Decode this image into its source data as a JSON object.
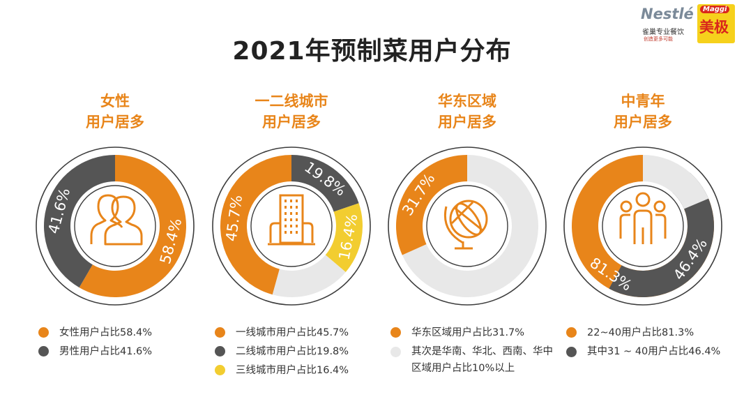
{
  "title": "2021年预制菜用户分布",
  "logos": {
    "nestle_word": "Nestlé",
    "nestle_sub": "雀巢专业餐饮",
    "nestle_tag": "创造更多可能",
    "maggi_word": "Maggi",
    "maggi_cn": "美极"
  },
  "colors": {
    "orange": "#e8851a",
    "gray": "#555555",
    "yellow": "#f2cd30",
    "light": "#e8e8e8"
  },
  "chart_data": [
    {
      "type": "pie",
      "title_line1": "女性",
      "title_line2": "用户居多",
      "icon": "users-icon",
      "slices": [
        {
          "label": "58.4%",
          "value": 58.4,
          "color": "#e8851a",
          "start": 0
        },
        {
          "label": "41.6%",
          "value": 41.6,
          "color": "#555555",
          "start": 58.4
        }
      ],
      "legend": [
        {
          "text": "女性用户占比58.4%",
          "color": "#e8851a"
        },
        {
          "text": "男性用户占比41.6%",
          "color": "#555555"
        }
      ]
    },
    {
      "type": "pie",
      "title_line1": "一二线城市",
      "title_line2": "用户居多",
      "icon": "building-icon",
      "slices": [
        {
          "label": "45.7%",
          "value": 45.7,
          "color": "#e8851a",
          "start": -45.7
        },
        {
          "label": "19.8%",
          "value": 19.8,
          "color": "#555555",
          "start": 0
        },
        {
          "label": "16.4%",
          "value": 16.4,
          "color": "#f2cd30",
          "start": 19.8
        },
        {
          "label": "",
          "value": 18.1,
          "color": "#e8e8e8",
          "start": 36.2
        }
      ],
      "legend": [
        {
          "text": "一线城市用户占比45.7%",
          "color": "#e8851a"
        },
        {
          "text": "二线城市用户占比19.8%",
          "color": "#555555"
        },
        {
          "text": "三线城市用户占比16.4%",
          "color": "#f2cd30"
        }
      ]
    },
    {
      "type": "pie",
      "title_line1": "华东区域",
      "title_line2": "用户居多",
      "icon": "globe-icon",
      "slices": [
        {
          "label": "31.7%",
          "value": 31.7,
          "color": "#e8851a",
          "start": -31.7
        },
        {
          "label": "",
          "value": 68.3,
          "color": "#e8e8e8",
          "start": 0
        }
      ],
      "legend": [
        {
          "text": "华东区域用户占比31.7%",
          "color": "#e8851a"
        },
        {
          "text": "其次是华南、华北、西南、华中区域用户占比10%以上",
          "color": "#e8e8e8"
        }
      ]
    },
    {
      "type": "pie",
      "title_line1": "中青年",
      "title_line2": "用户居多",
      "icon": "group-icon",
      "slices": [
        {
          "label": "81.3%",
          "value": 81.3,
          "color": "#e8851a",
          "start": -81.3
        },
        {
          "label": "46.4%",
          "value": 46.4,
          "color": "#555555",
          "start": 11.5
        },
        {
          "label": "",
          "value": 18.7,
          "color": "#e8e8e8",
          "start": 0
        }
      ],
      "legend": [
        {
          "text": "22~40用户占比81.3%",
          "color": "#e8851a"
        },
        {
          "text": "其中31 ~ 40用户占比46.4%",
          "color": "#555555"
        }
      ]
    }
  ]
}
